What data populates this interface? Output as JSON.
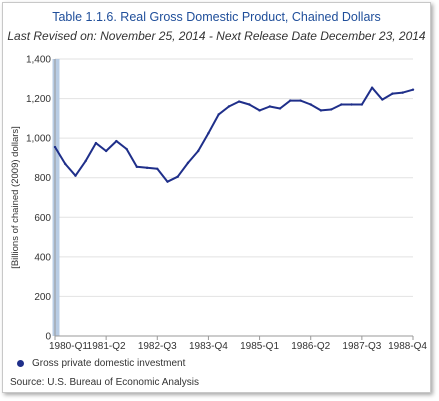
{
  "chart_data": {
    "type": "line",
    "title": "Table 1.1.6. Real Gross Domestic Product, Chained Dollars",
    "subtitle": "Last Revised on: November 25, 2014 - Next Release Date December 23, 2014",
    "ylabel": "[Billions of chained (2009) dollars]",
    "xlabel": "",
    "ylim": [
      0,
      1400
    ],
    "yticks": [
      0,
      200,
      400,
      600,
      800,
      1000,
      1200,
      1400
    ],
    "ytick_labels": [
      "0",
      "200",
      "400",
      "600",
      "800",
      "1,000",
      "1,200",
      "1,400"
    ],
    "x": [
      "1980-Q1",
      "1980-Q2",
      "1980-Q3",
      "1980-Q4",
      "1981-Q1",
      "1981-Q2",
      "1981-Q3",
      "1981-Q4",
      "1982-Q1",
      "1982-Q2",
      "1982-Q3",
      "1982-Q4",
      "1983-Q1",
      "1983-Q2",
      "1983-Q3",
      "1983-Q4",
      "1984-Q1",
      "1984-Q2",
      "1984-Q3",
      "1984-Q4",
      "1985-Q1",
      "1985-Q2",
      "1985-Q3",
      "1985-Q4",
      "1986-Q1",
      "1986-Q2",
      "1986-Q3",
      "1986-Q4",
      "1987-Q1",
      "1987-Q2",
      "1987-Q3",
      "1987-Q4",
      "1988-Q1",
      "1988-Q2",
      "1988-Q3",
      "1988-Q4"
    ],
    "xtick_labels": [
      "1980-Q1",
      "1981-Q2",
      "1982-Q3",
      "1983-Q4",
      "1985-Q1",
      "1986-Q2",
      "1987-Q3",
      "1988-Q4"
    ],
    "series": [
      {
        "name": "Gross private domestic investment",
        "color": "#1f2f8a",
        "values": [
          955,
          870,
          810,
          885,
          975,
          935,
          985,
          945,
          855,
          850,
          845,
          780,
          805,
          875,
          935,
          1025,
          1120,
          1160,
          1185,
          1170,
          1140,
          1160,
          1150,
          1190,
          1190,
          1170,
          1140,
          1145,
          1170,
          1170,
          1170,
          1255,
          1195,
          1225,
          1230,
          1245
        ]
      }
    ],
    "highlight_band": {
      "color": "#b8cce4"
    },
    "grid": true,
    "legend": "bottom-left"
  },
  "source": "Source: U.S. Bureau of Economic  Analysis"
}
